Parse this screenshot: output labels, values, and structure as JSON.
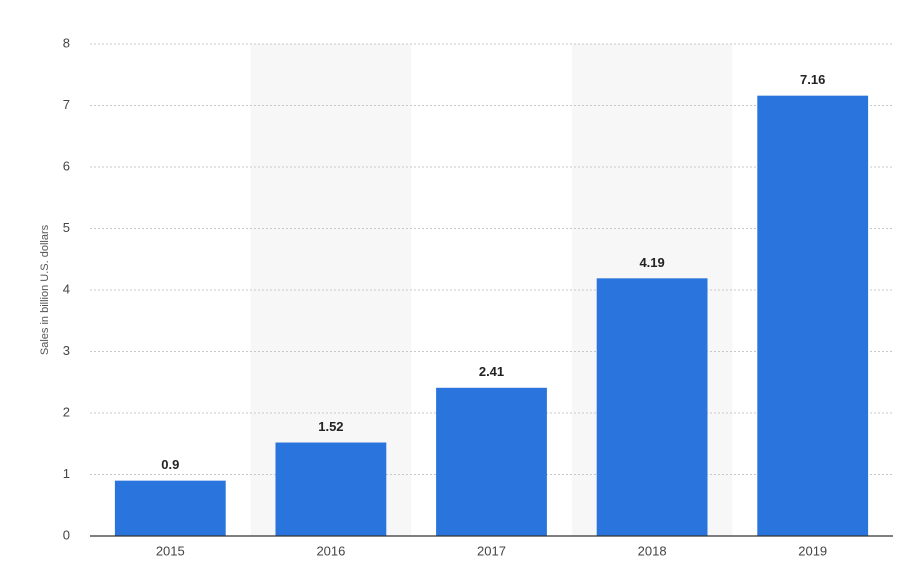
{
  "chart_data": {
    "type": "bar",
    "y_label": "Sales in billion U.S. dollars",
    "categories": [
      "2015",
      "2016",
      "2017",
      "2018",
      "2019"
    ],
    "values": [
      0.9,
      1.52,
      2.41,
      4.19,
      7.16
    ],
    "color": "#2a75dd",
    "ylim": [
      0,
      8
    ],
    "yticks": [
      0,
      1,
      2,
      3,
      4,
      5,
      6,
      7,
      8
    ],
    "grid": true
  }
}
